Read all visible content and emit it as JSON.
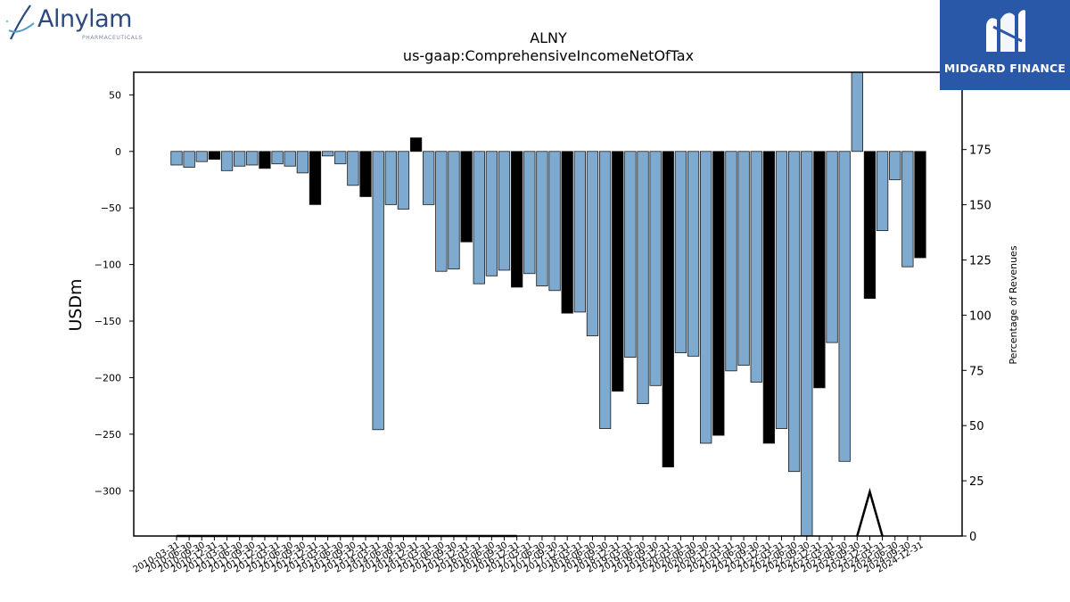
{
  "header": {
    "left_logo": {
      "brand": "Alnylam",
      "sub": "PHARMACEUTICALS"
    },
    "right_logo": {
      "name": "MIDGARD FINANCE"
    }
  },
  "chart_data": {
    "type": "bar",
    "title": "ALNY",
    "subtitle": "us-gaap:ComprehensiveIncomeNetOfTax",
    "ylabel": "USDm",
    "y2label": "Percentage of Revenues",
    "ylim": [
      -340,
      70
    ],
    "y2lim": [
      0,
      210
    ],
    "yticks": [
      50,
      0,
      -50,
      -100,
      -150,
      -200,
      -250,
      -300
    ],
    "y2ticks": [
      0,
      25,
      50,
      75,
      100,
      125,
      150,
      175
    ],
    "grid": false,
    "colors": {
      "quarter": "#7eaad0",
      "q4": "#000000",
      "edge": "#1a1a1a"
    },
    "categories": [
      "2010-03-31",
      "2010-06-30",
      "2010-09-30",
      "2010-12-31",
      "2011-03-31",
      "2011-06-30",
      "2011-09-30",
      "2011-12-31",
      "2012-03-31",
      "2012-06-30",
      "2012-09-30",
      "2012-12-31",
      "2013-03-31",
      "2013-06-30",
      "2013-09-30",
      "2013-12-31",
      "2014-03-31",
      "2014-06-30",
      "2014-09-30",
      "2014-12-31",
      "2015-03-31",
      "2015-06-30",
      "2015-09-30",
      "2015-12-31",
      "2016-03-31",
      "2016-06-30",
      "2016-09-30",
      "2016-12-31",
      "2017-03-31",
      "2017-06-30",
      "2017-09-30",
      "2017-12-31",
      "2018-03-31",
      "2018-06-30",
      "2018-09-30",
      "2018-12-31",
      "2019-03-31",
      "2019-06-30",
      "2019-09-30",
      "2019-12-31",
      "2020-03-31",
      "2020-06-30",
      "2020-09-30",
      "2020-12-31",
      "2021-03-31",
      "2021-06-30",
      "2021-09-30",
      "2021-12-31",
      "2022-03-31",
      "2022-06-30",
      "2022-09-30",
      "2022-12-31",
      "2023-03-31",
      "2023-06-30",
      "2023-09-30",
      "2023-12-31",
      "2024-03-31",
      "2024-06-30",
      "2024-09-30",
      "2024-12-31"
    ],
    "tick_labels": [
      "2010-03-31",
      "2010-06-30",
      "2010-09-30",
      "2010-12-31",
      "2011-03-31",
      "2011-06-30",
      "2011-09-30",
      "2011-12-31",
      "2012-03-31",
      "2012-06-30",
      "2012-09-30",
      "2012-12-31",
      "2013-03-31",
      "2013-06-30",
      "2013-09-30",
      "2013-12-31",
      "2014-03-31",
      "2014-06-30",
      "2014-09-30",
      "2014-12-31",
      "2015-03-31",
      "2015-06-30",
      "2015-09-30",
      "2015-12-31",
      "2016-03-31",
      "2016-06-30",
      "2016-09-30",
      "2016-12-31",
      "2017-03-31",
      "2017-06-30",
      "2017-09-30",
      "2017-12-31",
      "2018-03-31",
      "2018-06-30",
      "2018-09-30",
      "2018-12-31",
      "2019-03-31",
      "2019-06-30",
      "2019-09-30",
      "2019-12-31",
      "2020-03-31",
      "2020-06-30",
      "2020-09-30",
      "2020-12-31",
      "2021-03-31",
      "2021-06-30",
      "2021-09-30",
      "2021-12-31",
      "2022-03-31",
      "2022-06-30",
      "2022-09-30",
      "2022-12-31",
      "2023-03-31",
      "2023-06-30",
      "2023-09-30",
      "2023-12-31",
      "2024-03-31",
      "2024-06-30",
      "2024-09-30",
      "2024-12-31"
    ],
    "series": [
      {
        "values": [
          -12,
          -14,
          -9,
          -7,
          -17,
          -13,
          -12,
          -15,
          -11,
          -13,
          -19,
          -47,
          -4,
          -11,
          -30,
          -40,
          -246,
          -47,
          -51,
          12,
          -47,
          -106,
          -104,
          -80,
          -117,
          -110,
          -105,
          -120,
          -108,
          -119,
          -123,
          -143,
          -142,
          -163,
          -245,
          -212,
          -182,
          -223,
          -207,
          -279,
          -178,
          -181,
          -258,
          -251,
          -194,
          -189,
          -204,
          -258,
          -245,
          -283,
          -340,
          -209,
          -169,
          -274,
          70,
          -130,
          -70,
          -25,
          -102,
          -94
        ]
      },
      {
        "values": [
          0,
          0,
          0,
          0,
          0,
          0,
          0,
          0,
          0,
          0,
          0,
          0,
          0,
          0,
          0,
          0,
          0,
          0,
          0,
          0,
          0,
          0,
          0,
          0,
          0,
          0,
          0,
          0,
          null,
          null,
          null,
          null,
          null,
          null,
          null,
          null,
          null,
          null,
          null,
          null,
          null,
          null,
          null,
          null,
          null,
          null,
          null,
          null,
          null,
          null,
          null,
          null,
          null,
          null,
          0,
          20,
          0,
          null,
          null,
          null
        ]
      }
    ]
  }
}
